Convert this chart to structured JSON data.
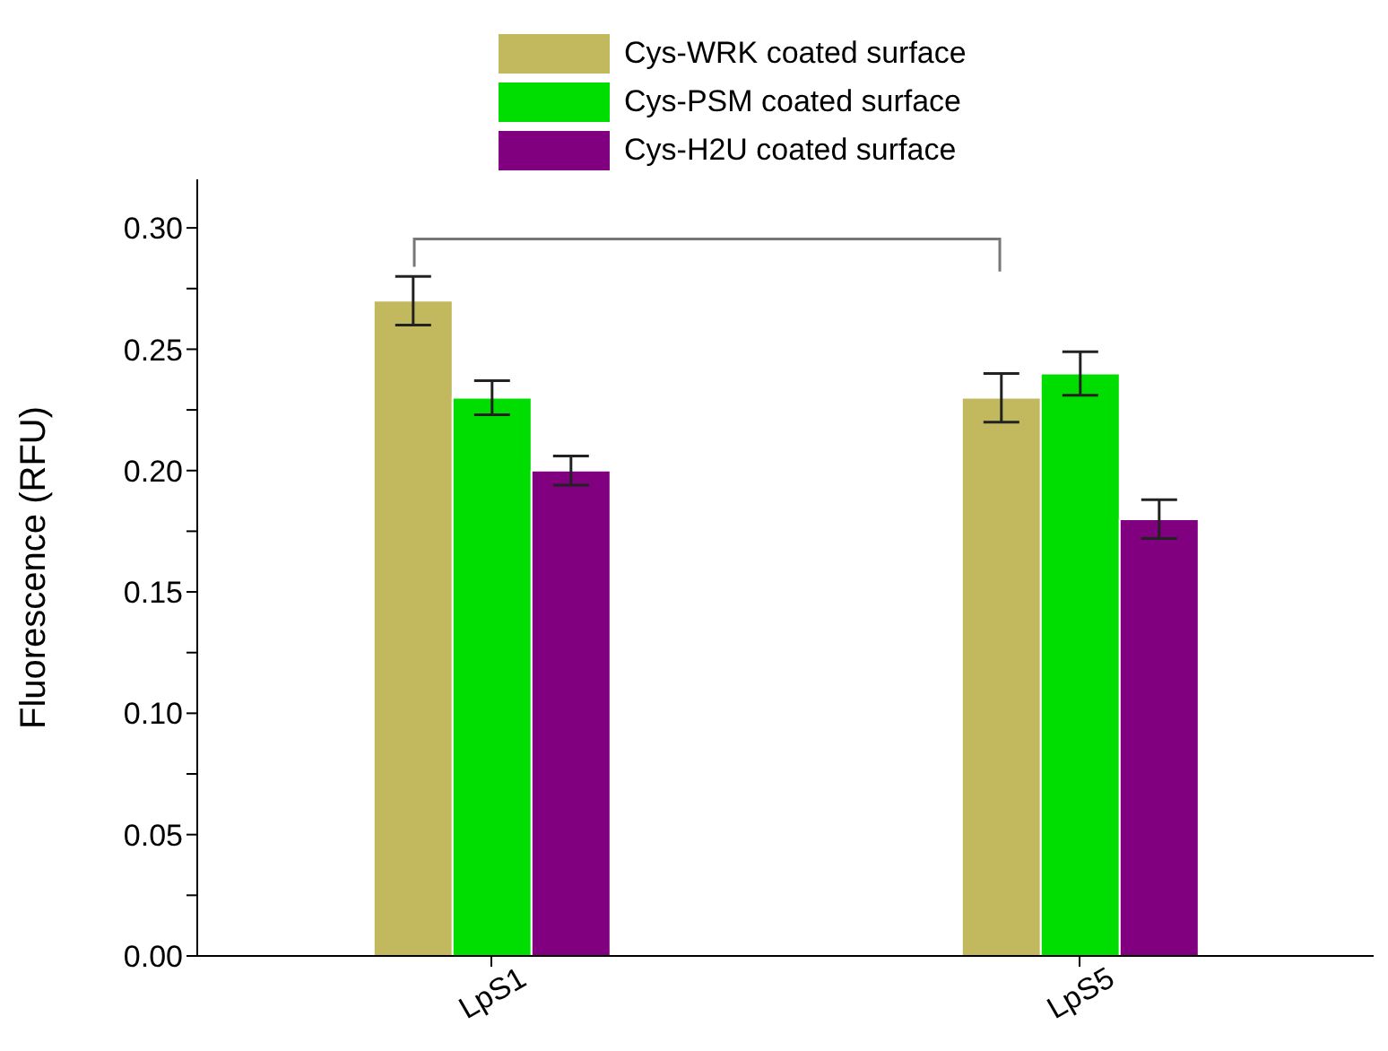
{
  "chart_data": {
    "type": "bar",
    "ylabel": "Fluorescence (RFU)",
    "categories": [
      "LpS1",
      "LpS5"
    ],
    "series": [
      {
        "name": "Cys-WRK coated surface",
        "color": "#c2b95e",
        "values": [
          0.27,
          0.23
        ],
        "errors": [
          0.01,
          0.01
        ]
      },
      {
        "name": "Cys-PSM coated surface",
        "color": "#00dd00",
        "values": [
          0.23,
          0.24
        ],
        "errors": [
          0.007,
          0.009
        ]
      },
      {
        "name": "Cys-H2U coated surface",
        "color": "#800080",
        "values": [
          0.2,
          0.18
        ],
        "errors": [
          0.006,
          0.008
        ]
      }
    ],
    "ylim": [
      0,
      0.32
    ],
    "yticks": [
      {
        "value": 0,
        "label": "0.00"
      },
      {
        "value": 0.025,
        "label": null
      },
      0.05,
      {
        "value": 0.075,
        "label": null
      },
      {
        "value": 0.1,
        "label": "0.10"
      },
      {
        "value": 0.125,
        "label": null
      },
      0.15,
      {
        "value": 0.175,
        "label": null
      },
      {
        "value": 0.2,
        "label": "0.20"
      },
      {
        "value": 0.225,
        "label": null
      },
      0.25,
      {
        "value": 0.275,
        "label": null
      },
      {
        "value": 0.3,
        "label": "0.30"
      }
    ],
    "legend": "top",
    "grid": false
  }
}
